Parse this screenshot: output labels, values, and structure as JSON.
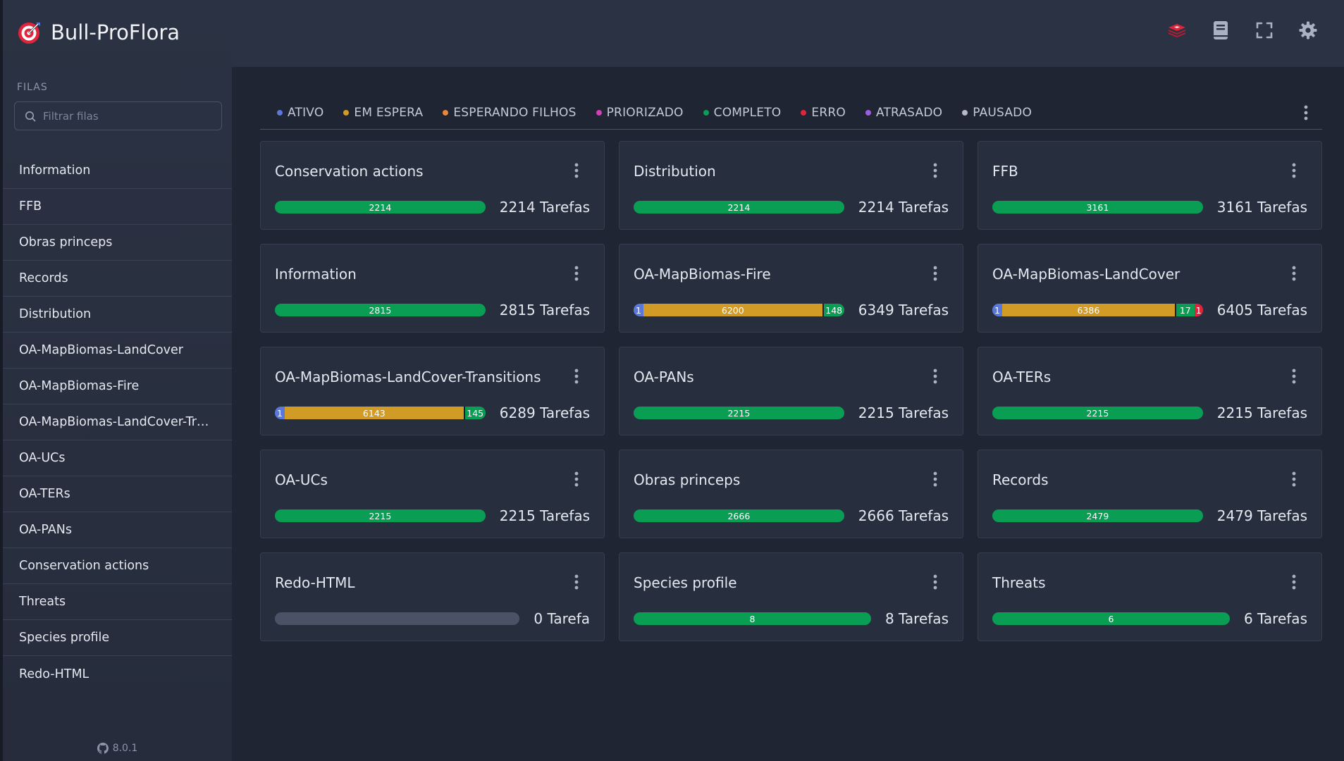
{
  "app": {
    "title": "Bull-ProFlora",
    "version": "8.0.1"
  },
  "sidebar": {
    "section_label": "FILAS",
    "filter_placeholder": "Filtrar filas",
    "items": [
      {
        "label": "Information"
      },
      {
        "label": "FFB"
      },
      {
        "label": "Obras princeps"
      },
      {
        "label": "Records"
      },
      {
        "label": "Distribution"
      },
      {
        "label": "OA-MapBiomas-LandCover"
      },
      {
        "label": "OA-MapBiomas-Fire"
      },
      {
        "label": "OA-MapBiomas-LandCover-Transitions"
      },
      {
        "label": "OA-UCs"
      },
      {
        "label": "OA-TERs"
      },
      {
        "label": "OA-PANs"
      },
      {
        "label": "Conservation actions"
      },
      {
        "label": "Threats"
      },
      {
        "label": "Species profile"
      },
      {
        "label": "Redo-HTML"
      }
    ]
  },
  "topbar": {
    "icons": [
      "redis-icon",
      "book-icon",
      "fullscreen-icon",
      "gear-icon"
    ]
  },
  "legend": [
    {
      "label": "ATIVO",
      "color": "#5a78d9"
    },
    {
      "label": "EM ESPERA",
      "color": "#d19b26"
    },
    {
      "label": "ESPERANDO FILHOS",
      "color": "#e8873a"
    },
    {
      "label": "PRIORIZADO",
      "color": "#d63db7"
    },
    {
      "label": "COMPLETO",
      "color": "#0a9e55"
    },
    {
      "label": "ERRO",
      "color": "#e0243c"
    },
    {
      "label": "ATRASADO",
      "color": "#9b5ee0"
    },
    {
      "label": "PAUSADO",
      "color": "#b5bac4"
    }
  ],
  "cards": [
    {
      "title": "Conservation actions",
      "count": "2214 Tarefas",
      "ativo": 0,
      "espera": 0,
      "completo": 2214,
      "erro": 0
    },
    {
      "title": "Distribution",
      "count": "2214 Tarefas",
      "ativo": 0,
      "espera": 0,
      "completo": 2214,
      "erro": 0
    },
    {
      "title": "FFB",
      "count": "3161 Tarefas",
      "ativo": 0,
      "espera": 0,
      "completo": 3161,
      "erro": 0
    },
    {
      "title": "Information",
      "count": "2815 Tarefas",
      "ativo": 0,
      "espera": 0,
      "completo": 2815,
      "erro": 0
    },
    {
      "title": "OA-MapBiomas-Fire",
      "count": "6349 Tarefas",
      "ativo": 1,
      "espera": 6200,
      "completo": 148,
      "erro": 0
    },
    {
      "title": "OA-MapBiomas-LandCover",
      "count": "6405 Tarefas",
      "ativo": 1,
      "espera": 6386,
      "completo": 17,
      "erro": 1
    },
    {
      "title": "OA-MapBiomas-LandCover-Transitions",
      "count": "6289 Tarefas",
      "ativo": 1,
      "espera": 6143,
      "completo": 145,
      "erro": 0
    },
    {
      "title": "OA-PANs",
      "count": "2215 Tarefas",
      "ativo": 0,
      "espera": 0,
      "completo": 2215,
      "erro": 0
    },
    {
      "title": "OA-TERs",
      "count": "2215 Tarefas",
      "ativo": 0,
      "espera": 0,
      "completo": 2215,
      "erro": 0
    },
    {
      "title": "OA-UCs",
      "count": "2215 Tarefas",
      "ativo": 0,
      "espera": 0,
      "completo": 2215,
      "erro": 0
    },
    {
      "title": "Obras princeps",
      "count": "2666 Tarefas",
      "ativo": 0,
      "espera": 0,
      "completo": 2666,
      "erro": 0
    },
    {
      "title": "Records",
      "count": "2479 Tarefas",
      "ativo": 0,
      "espera": 0,
      "completo": 2479,
      "erro": 0
    },
    {
      "title": "Redo-HTML",
      "count": "0 Tarefa",
      "ativo": 0,
      "espera": 0,
      "completo": 0,
      "erro": 0
    },
    {
      "title": "Species profile",
      "count": "8 Tarefas",
      "ativo": 0,
      "espera": 0,
      "completo": 8,
      "erro": 0
    },
    {
      "title": "Threats",
      "count": "6 Tarefas",
      "ativo": 0,
      "espera": 0,
      "completo": 6,
      "erro": 0
    }
  ]
}
